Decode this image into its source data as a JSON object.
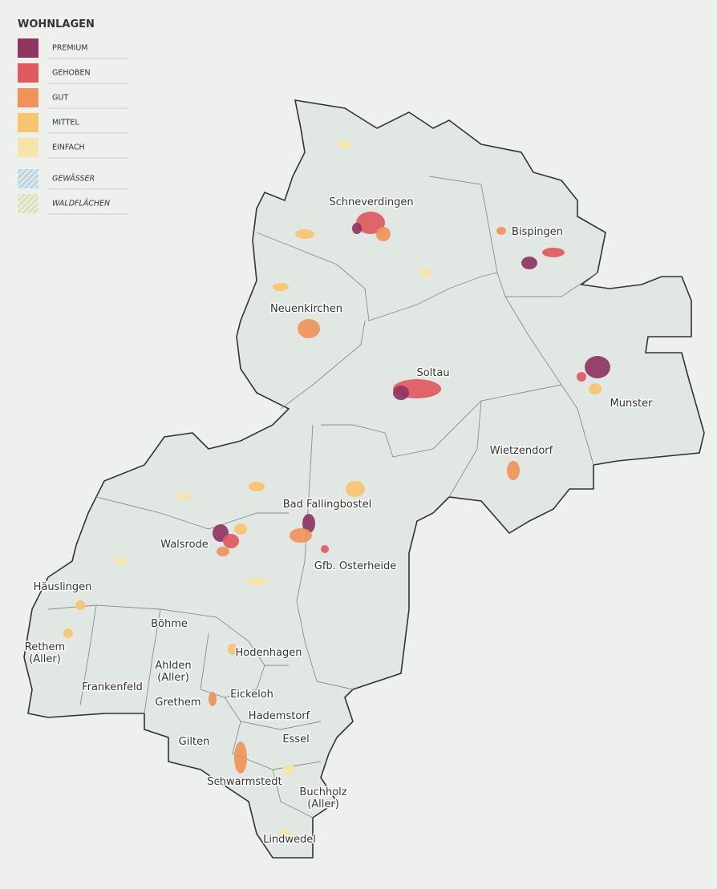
{
  "legend": {
    "title": "WOHNLAGEN",
    "items": [
      {
        "label": "PREMIUM",
        "color": "#8e3562"
      },
      {
        "label": "GEHOBEN",
        "color": "#e05a5f"
      },
      {
        "label": "GUT",
        "color": "#f0935a"
      },
      {
        "label": "MITTEL",
        "color": "#f9c46f"
      },
      {
        "label": "EINFACH",
        "color": "#f7e4a8"
      },
      {
        "label": "GEWÄSSER",
        "color": "#a9c9df",
        "hatched": true
      },
      {
        "label": "WALDFLÄCHEN",
        "color": "#cfdcaa",
        "hatched": true
      }
    ]
  },
  "places": [
    {
      "lines": [
        "Schneverdingen"
      ]
    },
    {
      "lines": [
        "Bispingen"
      ]
    },
    {
      "lines": [
        "Neuenkirchen"
      ]
    },
    {
      "lines": [
        "Soltau"
      ]
    },
    {
      "lines": [
        "Munster"
      ]
    },
    {
      "lines": [
        "Wietzendorf"
      ]
    },
    {
      "lines": [
        "Bad Fallingbostel"
      ]
    },
    {
      "lines": [
        "Walsrode"
      ]
    },
    {
      "lines": [
        "Gfb. Osterheide"
      ]
    },
    {
      "lines": [
        "Häuslingen"
      ]
    },
    {
      "lines": [
        "Böhme"
      ]
    },
    {
      "lines": [
        "Rethem",
        "(Aller)"
      ]
    },
    {
      "lines": [
        "Hodenhagen"
      ]
    },
    {
      "lines": [
        "Ahlden",
        "(Aller)"
      ]
    },
    {
      "lines": [
        "Frankenfeld"
      ]
    },
    {
      "lines": [
        "Eickeloh"
      ]
    },
    {
      "lines": [
        "Grethem"
      ]
    },
    {
      "lines": [
        "Hademstorf"
      ]
    },
    {
      "lines": [
        "Essel"
      ]
    },
    {
      "lines": [
        "Gilten"
      ]
    },
    {
      "lines": [
        "Schwarmstedt"
      ]
    },
    {
      "lines": [
        "Buchholz",
        "(Aller)"
      ]
    },
    {
      "lines": [
        "Lindwedel"
      ]
    }
  ]
}
